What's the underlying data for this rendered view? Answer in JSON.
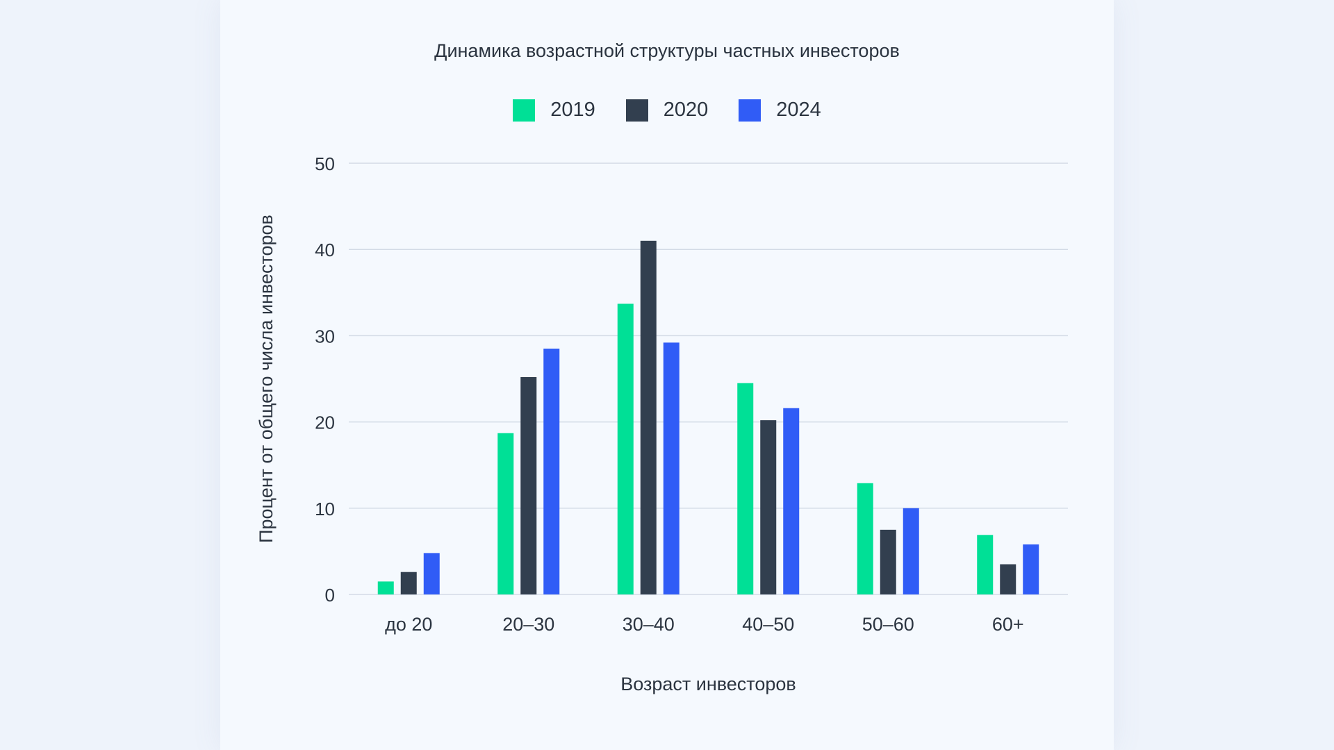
{
  "chart_data": {
    "type": "bar",
    "title": "Динамика возрастной структуры частных инвесторов",
    "xlabel": "Возраст инвесторов",
    "ylabel": "Процент от общего числа инвесторов",
    "categories": [
      "до 20",
      "20–30",
      "30–40",
      "40–50",
      "50–60",
      "60+"
    ],
    "series": [
      {
        "name": "2019",
        "color": "#00e096",
        "values": [
          1.5,
          18.7,
          33.7,
          24.5,
          12.9,
          6.9
        ]
      },
      {
        "name": "2020",
        "color": "#323f4f",
        "values": [
          2.6,
          25.2,
          41.0,
          20.2,
          7.5,
          3.5
        ]
      },
      {
        "name": "2024",
        "color": "#305cf6",
        "values": [
          4.8,
          28.5,
          29.2,
          21.6,
          10.0,
          5.8
        ]
      }
    ],
    "yticks": [
      "0",
      "10",
      "20",
      "30",
      "40",
      "50"
    ],
    "ylim": [
      0,
      50
    ],
    "grid": true,
    "legend_position": "top-center"
  }
}
